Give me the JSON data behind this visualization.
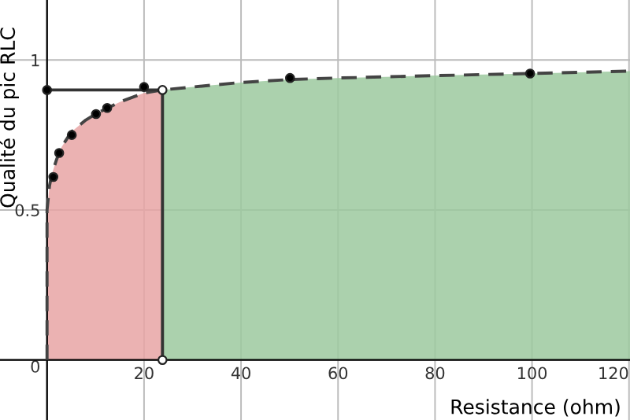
{
  "chart_data": {
    "type": "area",
    "xlabel": "Resistance (ohm)",
    "ylabel": "Qualité du pic RLC",
    "xlim": [
      -9.7,
      120.2
    ],
    "ylim": [
      -0.2,
      1.2
    ],
    "xticks": [
      {
        "value": 0,
        "label": null
      },
      20,
      40,
      60,
      80,
      100,
      120
    ],
    "yticks": [
      0,
      0.5,
      1
    ],
    "grid": true,
    "series": [
      {
        "color": "#e8a4a4",
        "x": [
          0,
          0,
          0.5,
          1,
          2,
          3,
          5,
          8,
          10,
          15,
          20,
          23.8
        ],
        "values": [
          0,
          0.5,
          0.58,
          0.62,
          0.67,
          0.71,
          0.76,
          0.8,
          0.82,
          0.86,
          0.89,
          0.9
        ]
      },
      {
        "color": "#9cc99f",
        "x": [
          23.8,
          30,
          40,
          50,
          60,
          80,
          100,
          120.2
        ],
        "values": [
          0.9,
          0.91,
          0.925,
          0.935,
          0.94,
          0.948,
          0.955,
          0.963
        ]
      },
      {
        "type": "line",
        "color": "#444444",
        "line_style": "dashed",
        "x": [
          0,
          0,
          0.5,
          1,
          2,
          3,
          5,
          8,
          10,
          15,
          20,
          23.8,
          30,
          40,
          50,
          60,
          80,
          100,
          120.2
        ],
        "values": [
          0,
          0.5,
          0.58,
          0.62,
          0.67,
          0.71,
          0.76,
          0.8,
          0.82,
          0.86,
          0.89,
          0.9,
          0.91,
          0.925,
          0.935,
          0.94,
          0.948,
          0.955,
          0.963
        ]
      },
      {
        "type": "line",
        "color": "#333333",
        "line_style": "solid",
        "x": [
          0,
          23.8
        ],
        "values": [
          0.9,
          0.9
        ]
      },
      {
        "type": "line",
        "color": "#333333",
        "line_style": "solid",
        "x": [
          23.8,
          23.8
        ],
        "values": [
          0,
          0.9
        ]
      },
      {
        "type": "scatter",
        "color": "#000000",
        "marker": "circle",
        "x": [
          0,
          1.3,
          2.5,
          5.1,
          10.1,
          12.4,
          20,
          50.1,
          99.6
        ],
        "values": [
          0.9,
          0.61,
          0.69,
          0.75,
          0.82,
          0.84,
          0.91,
          0.94,
          0.955
        ]
      },
      {
        "type": "scatter",
        "color": "#ffffff",
        "marker": "circle",
        "x": [
          23.8,
          23.8
        ],
        "values": [
          0.9,
          0
        ]
      }
    ]
  }
}
